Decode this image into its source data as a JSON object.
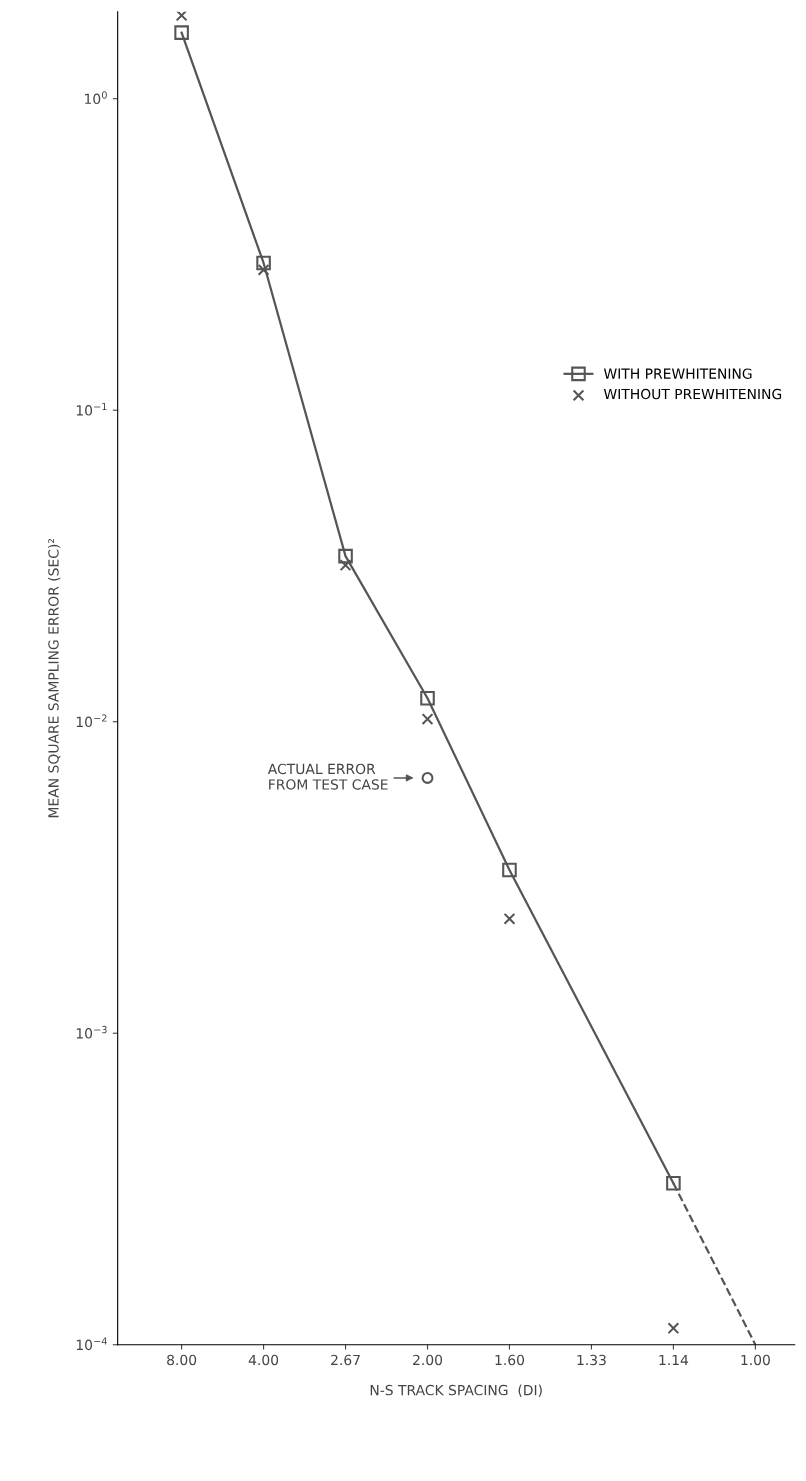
{
  "chart_data": {
    "type": "line",
    "xlabel": "N-S TRACK SPACING  (DI)",
    "ylabel": "MEAN SQUARE SAMPLING ERROR (SEC)²",
    "log": "y",
    "grid": false,
    "legend": "right",
    "categories": [
      "8.00",
      "4.00",
      "2.67",
      "2.00",
      "1.60",
      "1.33",
      "1.14",
      "1.00"
    ],
    "ylim": [
      0.0001,
      1.9
    ],
    "yticks": [
      {
        "value": 0.0001,
        "label": "10$^{−4}$"
      },
      {
        "value": 0.001,
        "label": "10$^{−3}$"
      },
      {
        "value": 0.01,
        "label": "10$^{−2}$"
      },
      {
        "value": 0.1,
        "label": "10$^{−1}$"
      },
      {
        "value": 1,
        "label": "10$^{0}$"
      }
    ],
    "series": [
      {
        "name": "WITH PREWHITENING",
        "marker": "square",
        "line_style": "solid",
        "color": "#555555",
        "x": [
          "8.00",
          "4.00",
          "2.67",
          "2.00",
          "1.60",
          "1.14"
        ],
        "values": [
          1.63,
          0.297,
          0.034,
          0.0119,
          0.00334,
          0.00033
        ]
      },
      {
        "marker": "none",
        "line_style": "dashed",
        "color": "#555555",
        "x": [
          "1.14",
          "1.00"
        ],
        "values": [
          0.00033,
          0.0001
        ]
      },
      {
        "name": "WITHOUT PREWHITENING",
        "type": "scatter",
        "marker": "cross",
        "color": "#555555",
        "x": [
          "8.00",
          "4.00",
          "2.67",
          "2.00",
          "1.60",
          "1.14"
        ],
        "values": [
          1.85,
          0.282,
          0.0318,
          0.0102,
          0.00233,
          0.000113
        ]
      },
      {
        "type": "scatter",
        "marker": "circle",
        "color": "#555555",
        "x": [
          "2.00"
        ],
        "values": [
          0.0066
        ]
      }
    ],
    "annotations": [
      {
        "text": "ACTUAL ERROR\nFROM TEST CASE",
        "x": "2.00",
        "y": 0.0066
      }
    ]
  }
}
